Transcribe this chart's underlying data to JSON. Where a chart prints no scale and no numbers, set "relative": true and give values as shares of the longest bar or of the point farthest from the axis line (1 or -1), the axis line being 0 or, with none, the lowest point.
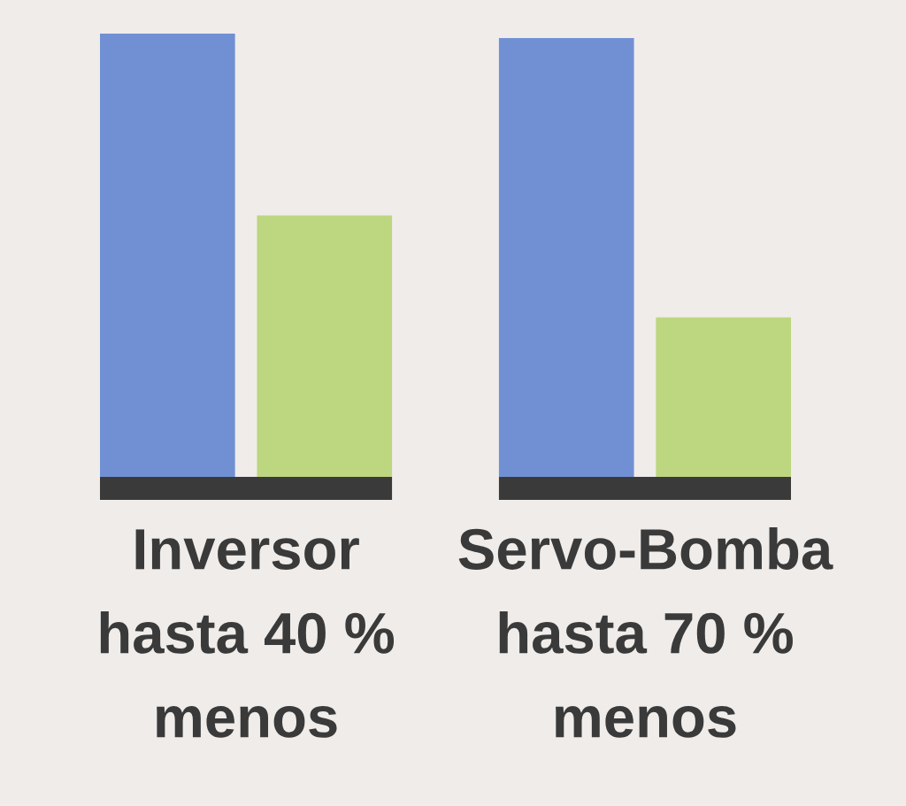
{
  "chart_data": {
    "type": "bar",
    "relative": true,
    "categories": [
      "Inversor\nhasta 40 %\nmenos",
      "Servo-Bomba\nhasta 70 %\nmenos"
    ],
    "series": [
      {
        "color": "#7190d4",
        "values": [
          1,
          0.99
        ]
      },
      {
        "color": "#bdd680",
        "values": [
          0.59,
          0.36
        ]
      }
    ],
    "grid": false
  }
}
